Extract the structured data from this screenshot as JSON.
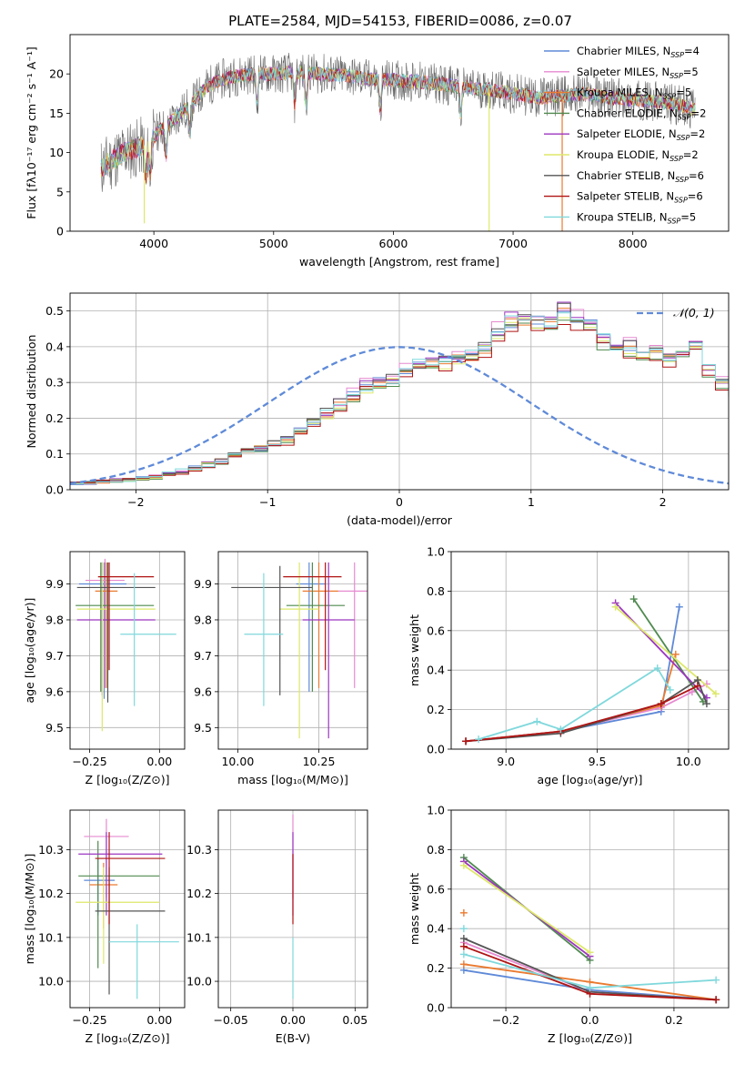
{
  "figure_title": "PLATE=2584, MJD=54153, FIBERID=0086, z=0.07",
  "series": [
    {
      "name": "Chabrier MILES",
      "nssp": "4",
      "color": "#5f8ad8"
    },
    {
      "name": "Salpeter MILES",
      "nssp": "5",
      "color": "#e68ad0"
    },
    {
      "name": "Kroupa MILES",
      "nssp": "5",
      "color": "#ea7a30"
    },
    {
      "name": "Chabrier ELODIE",
      "nssp": "2",
      "color": "#4f8a4f"
    },
    {
      "name": "Salpeter ELODIE",
      "nssp": "2",
      "color": "#9c36c0"
    },
    {
      "name": "Kroupa ELODIE",
      "nssp": "2",
      "color": "#dde86a"
    },
    {
      "name": "Chabrier STELIB",
      "nssp": "6",
      "color": "#555555"
    },
    {
      "name": "Salpeter STELIB",
      "nssp": "6",
      "color": "#b01414"
    },
    {
      "name": "Kroupa STELIB",
      "nssp": "5",
      "color": "#7fd8dc"
    }
  ],
  "chart_data": [
    {
      "id": "spectrum",
      "type": "line",
      "title": "PLATE=2584, MJD=54153, FIBERID=0086, z=0.07",
      "xlabel": "wavelength [Angstrom, rest frame]",
      "ylabel": "Flux [fλ10⁻¹⁷ erg cm⁻² s⁻¹ A⁻¹]",
      "xlim": [
        3300,
        8800
      ],
      "ylim": [
        0,
        25
      ],
      "xticks": [
        4000,
        5000,
        6000,
        7000,
        8000
      ],
      "yticks": [
        0,
        5,
        10,
        15,
        20
      ],
      "grid": false,
      "legend": "upper right",
      "continuum": {
        "x": [
          3560,
          3650,
          3750,
          3850,
          3950,
          4050,
          4150,
          4300,
          4450,
          4600,
          4800,
          5000,
          5200,
          5400,
          5600,
          5800,
          6000,
          6200,
          6400,
          6600,
          6800,
          7000,
          7200,
          7400,
          7600,
          7800,
          8000,
          8200,
          8400,
          8500
        ],
        "y": [
          8,
          9,
          10,
          10.5,
          11,
          13,
          14,
          16,
          18.5,
          19.5,
          20,
          20,
          20.2,
          20,
          19.8,
          19.3,
          19.2,
          19,
          18.7,
          18.3,
          18,
          17.5,
          17,
          17.2,
          17.5,
          17,
          16.7,
          16.5,
          16,
          15.5
        ]
      },
      "absorption_dips": [
        3934,
        3969,
        4102,
        4300,
        4861,
        5175,
        5270,
        5890,
        6563
      ],
      "sky_spikes": [
        {
          "x": 3920,
          "y_min": 1
        },
        {
          "x": 6800,
          "y_min": 0
        },
        {
          "x": 7410,
          "y_min": 0
        }
      ]
    },
    {
      "id": "residual_hist",
      "type": "histogram",
      "xlabel": "(data-model)/error",
      "ylabel": "Normed distribution",
      "xlim": [
        -2.5,
        2.5
      ],
      "ylim": [
        0,
        0.55
      ],
      "xticks": [
        -2,
        -1,
        0,
        1,
        2
      ],
      "yticks": [
        0,
        0.1,
        0.2,
        0.3,
        0.4,
        0.5
      ],
      "grid": true,
      "legend": "upper right",
      "reference_curve": {
        "label": "𝒩(0, 1)",
        "mean": 0,
        "sigma": 1,
        "color": "#5f8ad8",
        "style": "dashed"
      },
      "bin_width": 0.1,
      "bins_from": -2.5,
      "base_profile": [
        0.017,
        0.019,
        0.023,
        0.026,
        0.028,
        0.031,
        0.036,
        0.045,
        0.052,
        0.06,
        0.07,
        0.08,
        0.096,
        0.11,
        0.118,
        0.13,
        0.14,
        0.165,
        0.19,
        0.215,
        0.24,
        0.265,
        0.29,
        0.305,
        0.31,
        0.33,
        0.35,
        0.355,
        0.36,
        0.37,
        0.38,
        0.4,
        0.44,
        0.47,
        0.48,
        0.47,
        0.47,
        0.5,
        0.48,
        0.46,
        0.42,
        0.4,
        0.4,
        0.38,
        0.38,
        0.37,
        0.38,
        0.4,
        0.34,
        0.3,
        0.28,
        0.27,
        0.26,
        0.24,
        0.21,
        0.19,
        0.18,
        0.16,
        0.15,
        0.13,
        0.12,
        0.11,
        0.1,
        0.085,
        0.075,
        0.06,
        0.055,
        0.045,
        0.04,
        0.035,
        0.03,
        0.027,
        0.024,
        0.022,
        0.02,
        0.018,
        0.017,
        0.016,
        0.016,
        0.015
      ],
      "series_scale": [
        1.0,
        1.03,
        0.99,
        0.97,
        1.02,
        0.98,
        1.01,
        0.96,
        1.0
      ],
      "series_jitter_seed": [
        3,
        7,
        11,
        13,
        17,
        19,
        23,
        29,
        31
      ]
    },
    {
      "id": "age_vs_Z",
      "type": "errorbar",
      "xlabel": "Z [log₁₀(Z/Z⊙)]",
      "ylabel": "age  [log₁₀(age/yr)]",
      "xlim": [
        -0.32,
        0.09
      ],
      "ylim": [
        9.44,
        9.99
      ],
      "xticks": [
        -0.25,
        0.0
      ],
      "xtick_labels": [
        "−0.25",
        "0.00"
      ],
      "yticks": [
        9.5,
        9.6,
        9.7,
        9.8,
        9.9
      ],
      "grid": true,
      "points": [
        {
          "s": 0,
          "x": -0.198,
          "y": 9.9,
          "xerr": [
            0.09,
            0.08
          ],
          "yerr": [
            0.32,
            0.06
          ]
        },
        {
          "s": 1,
          "x": -0.195,
          "y": 9.91,
          "xerr": [
            0.07,
            0.07
          ],
          "yerr": [
            0.3,
            0.06
          ]
        },
        {
          "s": 2,
          "x": -0.19,
          "y": 9.88,
          "xerr": [
            0.04,
            0.04
          ],
          "yerr": [
            0.27,
            0.08
          ]
        },
        {
          "s": 3,
          "x": -0.21,
          "y": 9.84,
          "xerr": [
            0.09,
            0.19
          ],
          "yerr": [
            0.24,
            0.12
          ]
        },
        {
          "s": 4,
          "x": -0.205,
          "y": 9.8,
          "xerr": [
            0.09,
            0.19
          ],
          "yerr": [
            0.21,
            0.16
          ]
        },
        {
          "s": 5,
          "x": -0.205,
          "y": 9.83,
          "xerr": [
            0.09,
            0.19
          ],
          "yerr": [
            0.34,
            0.13
          ]
        },
        {
          "s": 6,
          "x": -0.185,
          "y": 9.89,
          "xerr": [
            0.11,
            0.17
          ],
          "yerr": [
            0.32,
            0.07
          ]
        },
        {
          "s": 7,
          "x": -0.18,
          "y": 9.92,
          "xerr": [
            0.04,
            0.16
          ],
          "yerr": [
            0.26,
            0.04
          ]
        },
        {
          "s": 8,
          "x": -0.09,
          "y": 9.76,
          "xerr": [
            0.05,
            0.15
          ],
          "yerr": [
            0.2,
            0.17
          ]
        }
      ]
    },
    {
      "id": "age_vs_mass",
      "type": "errorbar",
      "xlabel": "mass [log₁₀(M/M⊙)]",
      "ylabel": "",
      "xlim": [
        9.94,
        10.4
      ],
      "ylim": [
        9.44,
        9.99
      ],
      "xticks": [
        10.0,
        10.25
      ],
      "xtick_labels": [
        "10.00",
        "10.25"
      ],
      "yticks": [
        9.5,
        9.6,
        9.7,
        9.8,
        9.9
      ],
      "grid": true,
      "points": [
        {
          "s": 0,
          "x": 10.22,
          "y": 9.9,
          "xerr": [
            0.04,
            0.05
          ],
          "yerr": [
            0.3,
            0.06
          ]
        },
        {
          "s": 1,
          "x": 10.36,
          "y": 9.88,
          "xerr": [
            0.05,
            0.06
          ],
          "yerr": [
            0.27,
            0.08
          ]
        },
        {
          "s": 2,
          "x": 10.25,
          "y": 9.88,
          "xerr": [
            0.05,
            0.06
          ],
          "yerr": [
            0.27,
            0.08
          ]
        },
        {
          "s": 3,
          "x": 10.23,
          "y": 9.84,
          "xerr": [
            0.08,
            0.1
          ],
          "yerr": [
            0.24,
            0.12
          ]
        },
        {
          "s": 4,
          "x": 10.28,
          "y": 9.8,
          "xerr": [
            0.08,
            0.08
          ],
          "yerr": [
            0.33,
            0.16
          ]
        },
        {
          "s": 5,
          "x": 10.19,
          "y": 9.83,
          "xerr": [
            0.06,
            0.06
          ],
          "yerr": [
            0.36,
            0.13
          ]
        },
        {
          "s": 6,
          "x": 10.13,
          "y": 9.89,
          "xerr": [
            0.15,
            0.1
          ],
          "yerr": [
            0.3,
            0.06
          ]
        },
        {
          "s": 7,
          "x": 10.27,
          "y": 9.92,
          "xerr": [
            0.13,
            0.05
          ],
          "yerr": [
            0.26,
            0.04
          ]
        },
        {
          "s": 8,
          "x": 10.08,
          "y": 9.76,
          "xerr": [
            0.06,
            0.06
          ],
          "yerr": [
            0.2,
            0.17
          ]
        }
      ]
    },
    {
      "id": "weight_vs_age",
      "type": "line",
      "xlabel": "age  [log₁₀(age/yr)]",
      "ylabel": "mass weight",
      "xlim": [
        8.7,
        10.22
      ],
      "ylim": [
        0,
        1
      ],
      "xticks": [
        9.0,
        9.5,
        10.0
      ],
      "yticks": [
        0,
        0.2,
        0.4,
        0.6,
        0.8,
        1.0
      ],
      "grid": true,
      "lines": [
        {
          "s": 0,
          "x": [
            8.78,
            9.3,
            9.85,
            9.95
          ],
          "y": [
            0.04,
            0.09,
            0.19,
            0.72
          ]
        },
        {
          "s": 1,
          "x": [
            8.78,
            9.3,
            9.85,
            10.02,
            10.1
          ],
          "y": [
            0.04,
            0.09,
            0.21,
            0.29,
            0.33
          ]
        },
        {
          "s": 2,
          "x": [
            8.78,
            9.3,
            9.85,
            9.93
          ],
          "y": [
            0.04,
            0.09,
            0.22,
            0.48
          ]
        },
        {
          "s": 3,
          "x": [
            9.7,
            10.08
          ],
          "y": [
            0.76,
            0.24
          ]
        },
        {
          "s": 4,
          "x": [
            9.6,
            10.1
          ],
          "y": [
            0.74,
            0.26
          ]
        },
        {
          "s": 5,
          "x": [
            9.6,
            10.15
          ],
          "y": [
            0.72,
            0.28
          ]
        },
        {
          "s": 6,
          "x": [
            8.78,
            9.3,
            9.85,
            10.05,
            10.1
          ],
          "y": [
            0.04,
            0.08,
            0.23,
            0.35,
            0.23
          ]
        },
        {
          "s": 7,
          "x": [
            8.78,
            9.3,
            9.85,
            10.05
          ],
          "y": [
            0.04,
            0.09,
            0.23,
            0.32
          ]
        },
        {
          "s": 8,
          "x": [
            8.85,
            9.17,
            9.3,
            9.83,
            9.9
          ],
          "y": [
            0.05,
            0.14,
            0.1,
            0.41,
            0.3
          ]
        }
      ]
    },
    {
      "id": "mass_vs_Z",
      "type": "errorbar",
      "xlabel": "Z [log₁₀(Z/Z⊙)]",
      "ylabel": "mass [log₁₀(M/M⊙)]",
      "xlim": [
        -0.32,
        0.09
      ],
      "ylim": [
        9.94,
        10.39
      ],
      "xticks": [
        -0.25,
        0.0
      ],
      "xtick_labels": [
        "−0.25",
        "0.00"
      ],
      "yticks": [
        10.0,
        10.1,
        10.2,
        10.3
      ],
      "grid": true,
      "points": [
        {
          "s": 0,
          "x": -0.22,
          "y": 10.23,
          "xerr": [
            0.05,
            0.06
          ],
          "yerr": [
            0.08,
            0.05
          ]
        },
        {
          "s": 1,
          "x": -0.19,
          "y": 10.33,
          "xerr": [
            0.08,
            0.08
          ],
          "yerr": [
            0.14,
            0.04
          ]
        },
        {
          "s": 2,
          "x": -0.2,
          "y": 10.22,
          "xerr": [
            0.05,
            0.05
          ],
          "yerr": [
            0.1,
            0.05
          ]
        },
        {
          "s": 3,
          "x": -0.22,
          "y": 10.24,
          "xerr": [
            0.07,
            0.22
          ],
          "yerr": [
            0.21,
            0.08
          ]
        },
        {
          "s": 4,
          "x": -0.19,
          "y": 10.29,
          "xerr": [
            0.1,
            0.2
          ],
          "yerr": [
            0.14,
            0.05
          ]
        },
        {
          "s": 5,
          "x": -0.2,
          "y": 10.18,
          "xerr": [
            0.1,
            0.2
          ],
          "yerr": [
            0.14,
            0.08
          ]
        },
        {
          "s": 6,
          "x": -0.18,
          "y": 10.16,
          "xerr": [
            0.05,
            0.2
          ],
          "yerr": [
            0.19,
            0.1
          ]
        },
        {
          "s": 7,
          "x": -0.18,
          "y": 10.28,
          "xerr": [
            0.05,
            0.2
          ],
          "yerr": [
            0.15,
            0.06
          ]
        },
        {
          "s": 8,
          "x": -0.08,
          "y": 10.09,
          "xerr": [
            0.1,
            0.15
          ],
          "yerr": [
            0.13,
            0.04
          ]
        }
      ]
    },
    {
      "id": "mass_vs_ebv",
      "type": "errorbar",
      "xlabel": "E(B-V)",
      "ylabel": "",
      "xlim": [
        -0.06,
        0.06
      ],
      "ylim": [
        9.94,
        10.39
      ],
      "xticks": [
        -0.05,
        0.0,
        0.05
      ],
      "xtick_labels": [
        "−0.05",
        "0.00",
        "0.05"
      ],
      "yticks": [
        10.0,
        10.1,
        10.2,
        10.3
      ],
      "grid": true,
      "points": [
        {
          "s": 1,
          "x": 0.0,
          "y": 10.33,
          "xerr": [
            0,
            0
          ],
          "yerr": [
            0.14,
            0.05
          ]
        },
        {
          "s": 4,
          "x": 0.0,
          "y": 10.29,
          "xerr": [
            0,
            0
          ],
          "yerr": [
            0.14,
            0.05
          ]
        },
        {
          "s": 7,
          "x": 0.0,
          "y": 10.24,
          "xerr": [
            0,
            0
          ],
          "yerr": [
            0.11,
            0.05
          ]
        },
        {
          "s": 8,
          "x": 0.0,
          "y": 10.05,
          "xerr": [
            0,
            0
          ],
          "yerr": [
            0.09,
            0.05
          ]
        }
      ]
    },
    {
      "id": "weight_vs_Z",
      "type": "line",
      "xlabel": "Z [log₁₀(Z/Z⊙)]",
      "ylabel": "mass weight",
      "xlim": [
        -0.33,
        0.33
      ],
      "ylim": [
        0,
        1
      ],
      "xticks": [
        -0.2,
        0.0,
        0.2
      ],
      "xtick_labels": [
        "−0.2",
        "0.0",
        "0.2"
      ],
      "yticks": [
        0,
        0.2,
        0.4,
        0.6,
        0.8,
        1.0
      ],
      "grid": true,
      "lines": [
        {
          "s": 0,
          "x": [
            -0.3,
            0.0,
            0.3
          ],
          "y": [
            0.19,
            0.09,
            0.04
          ]
        },
        {
          "s": 1,
          "x": [
            -0.3,
            0.0,
            0.3
          ],
          "y": [
            0.33,
            0.08,
            0.04
          ]
        },
        {
          "s": 2,
          "x": [
            -0.3,
            0.0,
            0.3
          ],
          "y": [
            0.22,
            0.13,
            0.04
          ]
        },
        {
          "s": 3,
          "x": [
            -0.3,
            0.0
          ],
          "y": [
            0.76,
            0.24
          ]
        },
        {
          "s": 4,
          "x": [
            -0.3,
            0.0
          ],
          "y": [
            0.74,
            0.26
          ]
        },
        {
          "s": 5,
          "x": [
            -0.3,
            0.0
          ],
          "y": [
            0.72,
            0.28
          ]
        },
        {
          "s": 6,
          "x": [
            -0.3,
            0.0,
            0.3
          ],
          "y": [
            0.35,
            0.08,
            0.04
          ]
        },
        {
          "s": 7,
          "x": [
            -0.3,
            0.0,
            0.3
          ],
          "y": [
            0.31,
            0.07,
            0.04
          ]
        },
        {
          "s": 8,
          "x": [
            -0.3,
            0.0,
            0.3
          ],
          "y": [
            0.27,
            0.1,
            0.14
          ]
        }
      ],
      "extra_markers": [
        {
          "s": 2,
          "x": -0.3,
          "y": 0.48
        },
        {
          "s": 8,
          "x": -0.3,
          "y": 0.4
        }
      ]
    }
  ]
}
